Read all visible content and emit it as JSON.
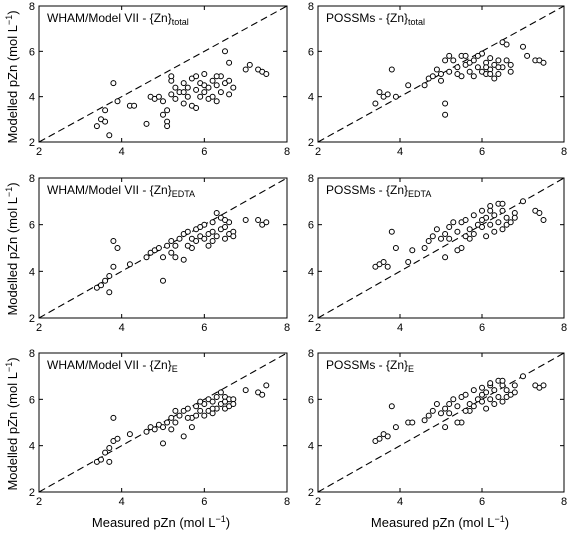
{
  "figure": {
    "ylabel": "Modelled pZn (mol L",
    "xlabel": "Measured pZn (mol L",
    "unit_exponent": "−1",
    "unit_close": ")"
  },
  "chart_data": [
    {
      "type": "scatter",
      "title": "WHAM/Model VII - {Zn}",
      "title_subscript": "total",
      "xlim": [
        2,
        8
      ],
      "ylim": [
        2,
        8
      ],
      "xticks": [
        "2",
        "4",
        "6",
        "8"
      ],
      "yticks": [
        "2",
        "4",
        "6",
        "8"
      ],
      "reference_line": "1:1",
      "points": [
        [
          3.4,
          2.7
        ],
        [
          3.5,
          3.0
        ],
        [
          3.6,
          3.4
        ],
        [
          3.6,
          2.9
        ],
        [
          3.7,
          2.3
        ],
        [
          3.8,
          4.6
        ],
        [
          3.9,
          3.8
        ],
        [
          4.2,
          3.6
        ],
        [
          4.3,
          3.6
        ],
        [
          4.6,
          2.8
        ],
        [
          4.7,
          4.0
        ],
        [
          4.8,
          3.9
        ],
        [
          4.9,
          4.0
        ],
        [
          5.0,
          3.8
        ],
        [
          5.0,
          3.2
        ],
        [
          5.1,
          2.9
        ],
        [
          5.1,
          2.7
        ],
        [
          5.1,
          3.4
        ],
        [
          5.2,
          4.7
        ],
        [
          5.2,
          4.1
        ],
        [
          5.3,
          4.4
        ],
        [
          5.3,
          3.9
        ],
        [
          5.4,
          4.2
        ],
        [
          5.5,
          4.6
        ],
        [
          5.5,
          3.7
        ],
        [
          5.6,
          4.4
        ],
        [
          5.6,
          4.0
        ],
        [
          5.7,
          4.8
        ],
        [
          5.7,
          3.6
        ],
        [
          5.8,
          4.3
        ],
        [
          5.8,
          3.5
        ],
        [
          5.9,
          4.6
        ],
        [
          5.9,
          4.0
        ],
        [
          6.0,
          5.0
        ],
        [
          6.0,
          4.5
        ],
        [
          6.1,
          3.9
        ],
        [
          6.1,
          4.4
        ],
        [
          6.2,
          4.7
        ],
        [
          6.2,
          4.0
        ],
        [
          6.3,
          4.5
        ],
        [
          6.3,
          3.8
        ],
        [
          6.4,
          4.9
        ],
        [
          6.4,
          4.2
        ],
        [
          6.5,
          6.0
        ],
        [
          6.5,
          4.6
        ],
        [
          6.6,
          5.5
        ],
        [
          6.6,
          4.7
        ],
        [
          6.6,
          4.1
        ],
        [
          6.7,
          4.4
        ],
        [
          7.0,
          5.2
        ],
        [
          7.1,
          5.4
        ],
        [
          7.3,
          5.2
        ],
        [
          7.4,
          5.1
        ],
        [
          7.5,
          5.0
        ],
        [
          5.2,
          4.9
        ],
        [
          5.5,
          4.2
        ],
        [
          5.8,
          4.9
        ],
        [
          6.0,
          4.2
        ],
        [
          6.3,
          4.9
        ]
      ]
    },
    {
      "type": "scatter",
      "title": "POSSMs - {Zn}",
      "title_subscript": "total",
      "xlim": [
        2,
        8
      ],
      "ylim": [
        2,
        8
      ],
      "xticks": [
        "2",
        "4",
        "6",
        "8"
      ],
      "yticks": [
        "2",
        "4",
        "6",
        "8"
      ],
      "reference_line": "1:1",
      "points": [
        [
          3.4,
          3.7
        ],
        [
          3.5,
          4.2
        ],
        [
          3.6,
          4.0
        ],
        [
          3.7,
          4.1
        ],
        [
          3.8,
          5.2
        ],
        [
          3.9,
          4.0
        ],
        [
          4.2,
          4.5
        ],
        [
          4.6,
          4.5
        ],
        [
          4.7,
          4.8
        ],
        [
          4.8,
          4.9
        ],
        [
          4.9,
          5.2
        ],
        [
          5.0,
          5.0
        ],
        [
          5.0,
          4.7
        ],
        [
          5.1,
          3.7
        ],
        [
          5.1,
          3.2
        ],
        [
          5.1,
          5.6
        ],
        [
          5.2,
          5.8
        ],
        [
          5.2,
          5.1
        ],
        [
          5.3,
          5.6
        ],
        [
          5.4,
          5.3
        ],
        [
          5.5,
          5.8
        ],
        [
          5.5,
          4.9
        ],
        [
          5.6,
          5.4
        ],
        [
          5.7,
          5.5
        ],
        [
          5.7,
          5.1
        ],
        [
          5.8,
          4.9
        ],
        [
          5.8,
          5.6
        ],
        [
          5.9,
          5.3
        ],
        [
          6.0,
          5.9
        ],
        [
          6.0,
          5.1
        ],
        [
          6.1,
          5.5
        ],
        [
          6.1,
          5.0
        ],
        [
          6.2,
          5.2
        ],
        [
          6.2,
          5.7
        ],
        [
          6.3,
          5.4
        ],
        [
          6.3,
          4.8
        ],
        [
          6.4,
          5.6
        ],
        [
          6.4,
          5.0
        ],
        [
          6.5,
          6.4
        ],
        [
          6.5,
          5.3
        ],
        [
          6.6,
          6.3
        ],
        [
          6.6,
          5.6
        ],
        [
          6.7,
          5.4
        ],
        [
          6.7,
          5.1
        ],
        [
          7.0,
          6.2
        ],
        [
          7.1,
          5.8
        ],
        [
          7.3,
          5.6
        ],
        [
          7.4,
          5.6
        ],
        [
          7.5,
          5.5
        ],
        [
          5.4,
          5.0
        ],
        [
          5.9,
          5.8
        ],
        [
          6.1,
          5.3
        ],
        [
          6.4,
          5.3
        ],
        [
          5.6,
          5.8
        ],
        [
          6.2,
          5.0
        ]
      ]
    },
    {
      "type": "scatter",
      "title": "WHAM/Model VII - {Zn}",
      "title_subscript": "EDTA",
      "xlim": [
        2,
        8
      ],
      "ylim": [
        2,
        8
      ],
      "xticks": [
        "2",
        "4",
        "6",
        "8"
      ],
      "yticks": [
        "2",
        "4",
        "6",
        "8"
      ],
      "reference_line": "1:1",
      "points": [
        [
          3.4,
          3.3
        ],
        [
          3.5,
          3.4
        ],
        [
          3.6,
          3.6
        ],
        [
          3.7,
          3.1
        ],
        [
          3.7,
          3.8
        ],
        [
          3.8,
          4.2
        ],
        [
          3.8,
          5.3
        ],
        [
          3.9,
          5.0
        ],
        [
          4.2,
          4.3
        ],
        [
          4.6,
          4.6
        ],
        [
          4.7,
          4.8
        ],
        [
          4.8,
          4.9
        ],
        [
          4.9,
          5.0
        ],
        [
          5.0,
          4.6
        ],
        [
          5.0,
          3.6
        ],
        [
          5.1,
          5.1
        ],
        [
          5.2,
          5.3
        ],
        [
          5.2,
          4.8
        ],
        [
          5.3,
          5.1
        ],
        [
          5.4,
          5.4
        ],
        [
          5.5,
          5.6
        ],
        [
          5.5,
          4.5
        ],
        [
          5.6,
          5.7
        ],
        [
          5.7,
          5.4
        ],
        [
          5.7,
          5.0
        ],
        [
          5.8,
          5.8
        ],
        [
          5.8,
          5.3
        ],
        [
          5.9,
          5.5
        ],
        [
          6.0,
          6.0
        ],
        [
          6.0,
          5.4
        ],
        [
          6.1,
          5.6
        ],
        [
          6.1,
          5.1
        ],
        [
          6.2,
          6.1
        ],
        [
          6.2,
          5.7
        ],
        [
          6.3,
          6.5
        ],
        [
          6.3,
          5.5
        ],
        [
          6.4,
          6.3
        ],
        [
          6.4,
          5.8
        ],
        [
          6.5,
          5.9
        ],
        [
          6.5,
          5.4
        ],
        [
          6.6,
          6.1
        ],
        [
          6.6,
          5.6
        ],
        [
          6.7,
          5.7
        ],
        [
          7.0,
          6.2
        ],
        [
          7.3,
          6.2
        ],
        [
          7.4,
          6.0
        ],
        [
          7.5,
          6.1
        ],
        [
          5.3,
          4.6
        ],
        [
          5.6,
          5.1
        ],
        [
          5.9,
          5.9
        ],
        [
          6.2,
          5.3
        ],
        [
          6.5,
          6.2
        ],
        [
          6.7,
          5.5
        ]
      ]
    },
    {
      "type": "scatter",
      "title": "POSSMs - {Zn}",
      "title_subscript": "EDTA",
      "xlim": [
        2,
        8
      ],
      "ylim": [
        2,
        8
      ],
      "xticks": [
        "2",
        "4",
        "6",
        "8"
      ],
      "yticks": [
        "2",
        "4",
        "6",
        "8"
      ],
      "reference_line": "1:1",
      "points": [
        [
          3.4,
          4.2
        ],
        [
          3.5,
          4.3
        ],
        [
          3.6,
          4.4
        ],
        [
          3.7,
          4.2
        ],
        [
          3.8,
          5.7
        ],
        [
          3.9,
          5.0
        ],
        [
          4.2,
          4.4
        ],
        [
          4.3,
          4.9
        ],
        [
          4.6,
          5.0
        ],
        [
          4.7,
          5.3
        ],
        [
          4.8,
          5.5
        ],
        [
          4.9,
          5.8
        ],
        [
          5.0,
          5.4
        ],
        [
          5.1,
          5.6
        ],
        [
          5.1,
          4.6
        ],
        [
          5.2,
          5.9
        ],
        [
          5.2,
          5.4
        ],
        [
          5.3,
          6.1
        ],
        [
          5.4,
          5.7
        ],
        [
          5.5,
          6.1
        ],
        [
          5.5,
          5.0
        ],
        [
          5.6,
          6.2
        ],
        [
          5.7,
          5.8
        ],
        [
          5.7,
          5.4
        ],
        [
          5.8,
          6.4
        ],
        [
          5.8,
          5.6
        ],
        [
          5.9,
          6.0
        ],
        [
          6.0,
          6.6
        ],
        [
          6.0,
          5.9
        ],
        [
          6.1,
          6.3
        ],
        [
          6.1,
          5.5
        ],
        [
          6.2,
          6.8
        ],
        [
          6.2,
          6.0
        ],
        [
          6.3,
          6.4
        ],
        [
          6.3,
          5.7
        ],
        [
          6.4,
          6.9
        ],
        [
          6.4,
          6.1
        ],
        [
          6.5,
          6.6
        ],
        [
          6.5,
          5.8
        ],
        [
          6.6,
          6.3
        ],
        [
          6.6,
          6.0
        ],
        [
          6.7,
          6.1
        ],
        [
          6.8,
          6.5
        ],
        [
          7.0,
          7.0
        ],
        [
          7.3,
          6.6
        ],
        [
          7.4,
          6.5
        ],
        [
          7.5,
          6.2
        ],
        [
          5.4,
          4.9
        ],
        [
          5.6,
          5.5
        ],
        [
          6.0,
          6.2
        ],
        [
          6.2,
          6.6
        ],
        [
          6.5,
          6.9
        ],
        [
          6.8,
          6.3
        ]
      ]
    },
    {
      "type": "scatter",
      "title": "WHAM/Model VII - {Zn}",
      "title_subscript": "E",
      "xlim": [
        2,
        8
      ],
      "ylim": [
        2,
        8
      ],
      "xticks": [
        "2",
        "4",
        "6",
        "8"
      ],
      "yticks": [
        "2",
        "4",
        "6",
        "8"
      ],
      "reference_line": "1:1",
      "points": [
        [
          3.4,
          3.3
        ],
        [
          3.5,
          3.4
        ],
        [
          3.6,
          3.7
        ],
        [
          3.7,
          3.3
        ],
        [
          3.7,
          3.9
        ],
        [
          3.8,
          4.2
        ],
        [
          3.8,
          5.2
        ],
        [
          3.9,
          4.3
        ],
        [
          4.2,
          4.5
        ],
        [
          4.6,
          4.6
        ],
        [
          4.7,
          4.8
        ],
        [
          4.8,
          4.7
        ],
        [
          4.9,
          4.9
        ],
        [
          5.0,
          4.8
        ],
        [
          5.0,
          4.1
        ],
        [
          5.1,
          5.0
        ],
        [
          5.2,
          5.2
        ],
        [
          5.2,
          4.7
        ],
        [
          5.3,
          5.5
        ],
        [
          5.4,
          5.3
        ],
        [
          5.5,
          5.5
        ],
        [
          5.5,
          4.4
        ],
        [
          5.6,
          5.6
        ],
        [
          5.7,
          5.2
        ],
        [
          5.7,
          4.8
        ],
        [
          5.8,
          5.7
        ],
        [
          5.8,
          5.3
        ],
        [
          5.9,
          5.5
        ],
        [
          6.0,
          5.8
        ],
        [
          6.0,
          5.3
        ],
        [
          6.1,
          6.0
        ],
        [
          6.1,
          5.5
        ],
        [
          6.2,
          5.9
        ],
        [
          6.2,
          5.4
        ],
        [
          6.3,
          6.1
        ],
        [
          6.3,
          5.6
        ],
        [
          6.4,
          6.3
        ],
        [
          6.4,
          5.8
        ],
        [
          6.5,
          6.1
        ],
        [
          6.5,
          5.6
        ],
        [
          6.6,
          6.0
        ],
        [
          6.6,
          5.7
        ],
        [
          6.7,
          6.0
        ],
        [
          7.0,
          6.4
        ],
        [
          7.3,
          6.3
        ],
        [
          7.4,
          6.2
        ],
        [
          7.5,
          6.6
        ],
        [
          5.3,
          5.0
        ],
        [
          5.6,
          5.2
        ],
        [
          5.9,
          5.9
        ],
        [
          6.2,
          5.6
        ],
        [
          6.5,
          5.9
        ],
        [
          6.7,
          5.8
        ]
      ]
    },
    {
      "type": "scatter",
      "title": "POSSMs - {Zn}",
      "title_subscript": "E",
      "xlim": [
        2,
        8
      ],
      "ylim": [
        2,
        8
      ],
      "xticks": [
        "2",
        "4",
        "6",
        "8"
      ],
      "yticks": [
        "2",
        "4",
        "6",
        "8"
      ],
      "reference_line": "1:1",
      "points": [
        [
          3.4,
          4.2
        ],
        [
          3.5,
          4.3
        ],
        [
          3.6,
          4.5
        ],
        [
          3.7,
          4.4
        ],
        [
          3.8,
          5.7
        ],
        [
          3.9,
          4.8
        ],
        [
          4.2,
          5.0
        ],
        [
          4.3,
          5.0
        ],
        [
          4.6,
          5.1
        ],
        [
          4.7,
          5.3
        ],
        [
          4.8,
          5.5
        ],
        [
          4.9,
          5.8
        ],
        [
          5.0,
          5.4
        ],
        [
          5.1,
          5.6
        ],
        [
          5.1,
          4.8
        ],
        [
          5.2,
          5.8
        ],
        [
          5.2,
          5.4
        ],
        [
          5.3,
          6.0
        ],
        [
          5.4,
          5.7
        ],
        [
          5.5,
          6.1
        ],
        [
          5.5,
          5.0
        ],
        [
          5.6,
          6.2
        ],
        [
          5.7,
          5.8
        ],
        [
          5.7,
          5.5
        ],
        [
          5.8,
          6.4
        ],
        [
          5.8,
          5.7
        ],
        [
          5.9,
          6.0
        ],
        [
          6.0,
          6.5
        ],
        [
          6.0,
          5.9
        ],
        [
          6.1,
          6.3
        ],
        [
          6.1,
          5.6
        ],
        [
          6.2,
          6.6
        ],
        [
          6.2,
          6.0
        ],
        [
          6.3,
          6.4
        ],
        [
          6.3,
          5.8
        ],
        [
          6.4,
          6.8
        ],
        [
          6.4,
          6.1
        ],
        [
          6.5,
          6.6
        ],
        [
          6.5,
          5.9
        ],
        [
          6.6,
          6.4
        ],
        [
          6.6,
          6.1
        ],
        [
          6.7,
          6.2
        ],
        [
          6.8,
          6.6
        ],
        [
          7.0,
          7.0
        ],
        [
          7.3,
          6.6
        ],
        [
          7.4,
          6.5
        ],
        [
          7.5,
          6.6
        ],
        [
          5.4,
          5.0
        ],
        [
          5.6,
          5.5
        ],
        [
          6.0,
          6.2
        ],
        [
          6.2,
          6.7
        ],
        [
          6.5,
          6.8
        ],
        [
          6.8,
          6.3
        ]
      ]
    }
  ]
}
